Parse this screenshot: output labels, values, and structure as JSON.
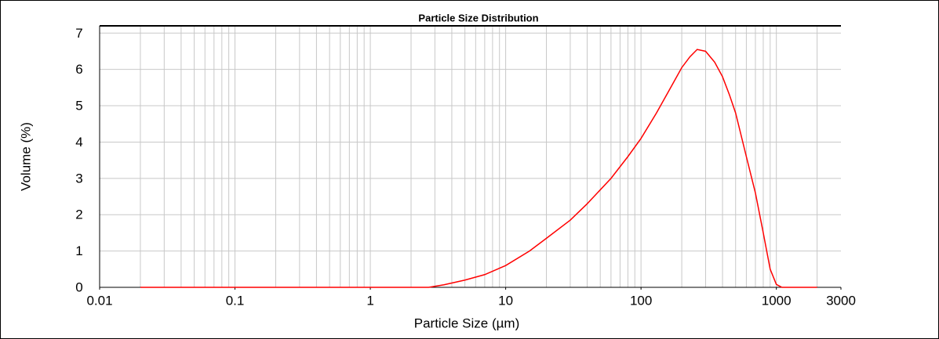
{
  "chart_data": {
    "type": "line",
    "title": "Particle Size Distribution",
    "xlabel": "Particle Size (µm)",
    "ylabel": "Volume (%)",
    "x_scale": "log",
    "x": [
      0.02,
      0.05,
      0.1,
      0.5,
      1,
      2,
      2.7,
      3.5,
      5,
      7,
      10,
      15,
      20,
      30,
      40,
      60,
      80,
      100,
      130,
      160,
      200,
      230,
      260,
      300,
      350,
      400,
      450,
      500,
      600,
      700,
      800,
      900,
      1000,
      1100,
      1300,
      2000
    ],
    "series": [
      {
        "name": "Volume",
        "color": "#ff0000",
        "values": [
          0,
          0,
          0,
          0,
          0,
          0,
          0,
          0.07,
          0.2,
          0.35,
          0.6,
          1.0,
          1.35,
          1.85,
          2.3,
          3.0,
          3.6,
          4.1,
          4.8,
          5.4,
          6.05,
          6.35,
          6.55,
          6.5,
          6.2,
          5.8,
          5.3,
          4.8,
          3.6,
          2.6,
          1.5,
          0.5,
          0.08,
          0,
          0,
          0
        ]
      }
    ],
    "xlim": [
      0.01,
      3000
    ],
    "xticks": [
      0.01,
      0.1,
      1,
      10,
      100,
      1000,
      3000
    ],
    "x_minor_grid": [
      0.02,
      0.03,
      0.04,
      0.05,
      0.06,
      0.07,
      0.08,
      0.09,
      0.1,
      0.2,
      0.3,
      0.4,
      0.5,
      0.6,
      0.7,
      0.8,
      0.9,
      1,
      2,
      3,
      4,
      5,
      6,
      7,
      8,
      9,
      10,
      20,
      30,
      40,
      50,
      60,
      70,
      80,
      90,
      100,
      200,
      300,
      400,
      500,
      600,
      700,
      800,
      900,
      1000,
      2000
    ],
    "ylim": [
      0,
      7.2
    ],
    "yticks": [
      0,
      1,
      2,
      3,
      4,
      5,
      6,
      7
    ],
    "grid": true
  }
}
